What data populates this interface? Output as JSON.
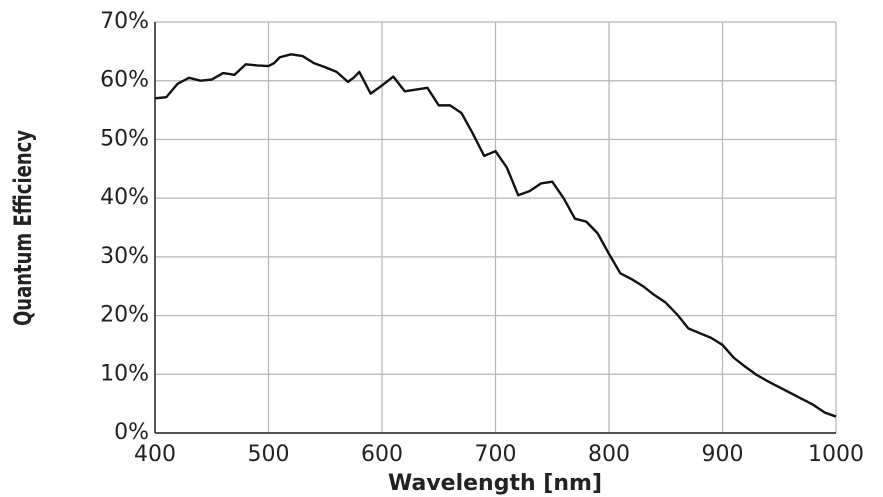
{
  "chart_data": {
    "type": "line",
    "xlabel": "Wavelength [nm]",
    "ylabel": "Quantum Efficiency",
    "x": [
      400,
      410,
      420,
      430,
      440,
      450,
      460,
      470,
      480,
      490,
      500,
      505,
      510,
      520,
      530,
      540,
      550,
      560,
      570,
      575,
      580,
      590,
      600,
      610,
      620,
      630,
      640,
      650,
      660,
      670,
      680,
      690,
      700,
      710,
      720,
      730,
      740,
      750,
      760,
      770,
      780,
      790,
      800,
      810,
      820,
      830,
      840,
      850,
      860,
      870,
      880,
      890,
      900,
      910,
      920,
      930,
      940,
      950,
      960,
      970,
      980,
      990,
      1000
    ],
    "series": [
      {
        "color": "#111111",
        "values": [
          57,
          57.2,
          59.5,
          60.5,
          60,
          60.2,
          61.3,
          61,
          62.8,
          62.6,
          62.5,
          63,
          64,
          64.5,
          64.2,
          63,
          62.3,
          61.5,
          59.8,
          60.5,
          61.5,
          57.8,
          59.2,
          60.7,
          58.2,
          58.5,
          58.8,
          55.8,
          55.8,
          54.5,
          51,
          47.2,
          48,
          45.2,
          40.5,
          41.2,
          42.5,
          42.8,
          40,
          36.5,
          36,
          34,
          30.5,
          27.2,
          26.2,
          25,
          23.5,
          22.2,
          20.2,
          17.8,
          17,
          16.2,
          15,
          12.8,
          11.3,
          9.9,
          8.8,
          7.8,
          6.8,
          5.8,
          4.8,
          3.5,
          2.8
        ]
      }
    ],
    "xlim": [
      400,
      1000
    ],
    "xticks": [
      400,
      500,
      600,
      700,
      800,
      900,
      1000
    ],
    "ylim": [
      0,
      70
    ],
    "yticks": [
      {
        "value": 0,
        "label": "0%"
      },
      {
        "value": 10,
        "label": "10%"
      },
      {
        "value": 20,
        "label": "20%"
      },
      {
        "value": 30,
        "label": "30%"
      },
      {
        "value": 40,
        "label": "40%"
      },
      {
        "value": 50,
        "label": "50%"
      },
      {
        "value": 60,
        "label": "60%"
      },
      {
        "value": 70,
        "label": "70%"
      }
    ],
    "grid": true
  }
}
